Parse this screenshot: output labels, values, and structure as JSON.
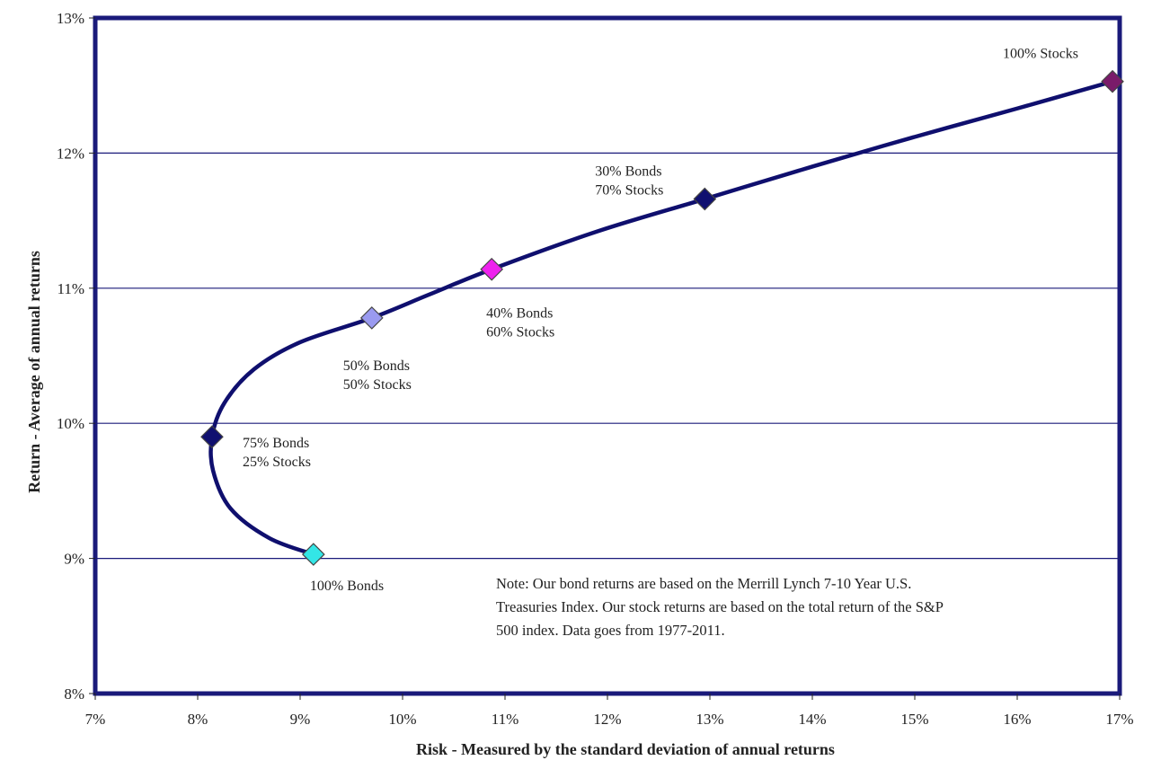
{
  "chart_data": {
    "type": "scatter",
    "xlabel": "Risk - Measured by the standard deviation of annual returns",
    "ylabel": "Return - Average of annual returns",
    "xlim": [
      7,
      17
    ],
    "ylim": [
      8,
      13
    ],
    "x_ticks": [
      "7%",
      "8%",
      "9%",
      "10%",
      "11%",
      "12%",
      "13%",
      "14%",
      "15%",
      "16%",
      "17%"
    ],
    "y_ticks": [
      "8%",
      "9%",
      "10%",
      "11%",
      "12%",
      "13%"
    ],
    "grid": "horizontal",
    "frontier_color": "#0f0f6e",
    "frontier": [
      {
        "x": 9.13,
        "y": 9.03
      },
      {
        "x": 8.7,
        "y": 9.15
      },
      {
        "x": 8.32,
        "y": 9.37
      },
      {
        "x": 8.15,
        "y": 9.65
      },
      {
        "x": 8.14,
        "y": 9.9
      },
      {
        "x": 8.26,
        "y": 10.15
      },
      {
        "x": 8.55,
        "y": 10.4
      },
      {
        "x": 9.0,
        "y": 10.6
      },
      {
        "x": 9.7,
        "y": 10.78
      },
      {
        "x": 10.25,
        "y": 10.95
      },
      {
        "x": 10.87,
        "y": 11.14
      },
      {
        "x": 11.9,
        "y": 11.42
      },
      {
        "x": 12.95,
        "y": 11.66
      },
      {
        "x": 14.0,
        "y": 11.9
      },
      {
        "x": 15.0,
        "y": 12.12
      },
      {
        "x": 16.0,
        "y": 12.33
      },
      {
        "x": 16.93,
        "y": 12.53
      }
    ],
    "points": [
      {
        "x": 9.13,
        "y": 9.03,
        "label_lines": [
          "100% Bonds"
        ],
        "color": "#33e6e6"
      },
      {
        "x": 8.14,
        "y": 9.9,
        "label_lines": [
          "75% Bonds",
          "25% Stocks"
        ],
        "color": "#101070"
      },
      {
        "x": 9.7,
        "y": 10.78,
        "label_lines": [
          "50% Bonds",
          "50% Stocks"
        ],
        "color": "#9a9af0"
      },
      {
        "x": 10.87,
        "y": 11.14,
        "label_lines": [
          "40% Bonds",
          "60% Stocks"
        ],
        "color": "#ee22ee"
      },
      {
        "x": 12.95,
        "y": 11.66,
        "label_lines": [
          "30% Bonds",
          "70% Stocks"
        ],
        "color": "#101070"
      },
      {
        "x": 16.93,
        "y": 12.53,
        "label_lines": [
          "100% Stocks"
        ],
        "color": "#7a1b6a"
      }
    ],
    "note": [
      "Note:  Our bond returns  are based on the Merrill  Lynch  7-10 Year U.S.",
      "Treasuries  Index.  Our stock returns are based on the total return of the S&P",
      "500 index.   Data goes from  1977-2011."
    ]
  }
}
